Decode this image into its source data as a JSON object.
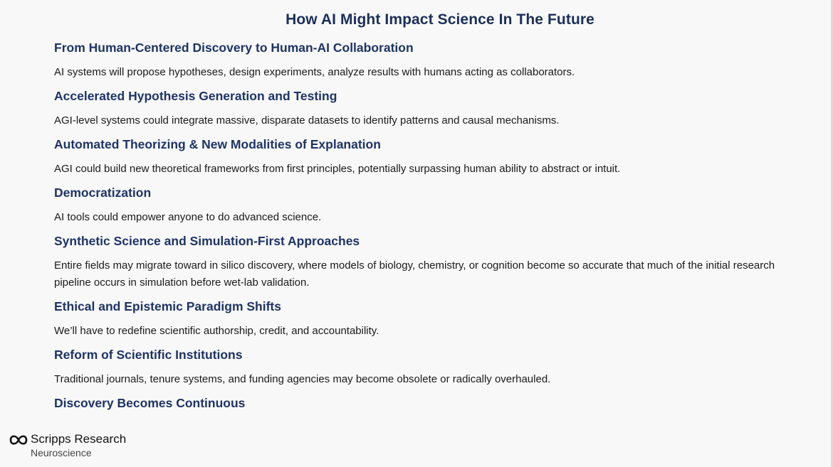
{
  "slide": {
    "title": "How AI Might Impact Science In The Future",
    "sections": [
      {
        "heading": "From Human-Centered Discovery to Human-AI Collaboration",
        "body": "AI systems will propose hypotheses, design experiments, analyze results with humans acting as collaborators."
      },
      {
        "heading": "Accelerated Hypothesis Generation and Testing",
        "body": "AGI-level systems could integrate massive, disparate datasets to identify patterns and causal mechanisms."
      },
      {
        "heading": "Automated Theorizing & New Modalities of Explanation",
        "body": "AGI could build new theoretical frameworks from first principles, potentially surpassing human ability to abstract or intuit."
      },
      {
        "heading": "Democratization",
        "body": "AI tools could empower anyone to do advanced science."
      },
      {
        "heading": "Synthetic Science and Simulation-First Approaches",
        "body": "Entire fields may migrate toward in silico discovery, where models of biology, chemistry, or cognition become so accurate that much of the initial research pipeline occurs in simulation before wet-lab validation."
      },
      {
        "heading": "Ethical and Epistemic Paradigm Shifts",
        "body": "We’ll have to redefine scientific authorship, credit, and accountability."
      },
      {
        "heading": "Reform of Scientific Institutions",
        "body": "Traditional journals, tenure systems, and funding agencies may become obsolete or radically overhauled."
      },
      {
        "heading": "Discovery Becomes Continuous",
        "body": ""
      }
    ]
  },
  "logo": {
    "name": "Scripps Research",
    "subtitle": "Neuroscience",
    "icon": "scripps-infinity-icon"
  },
  "colors": {
    "heading": "#1d3466",
    "title": "#1b2f5b",
    "body": "#1a1a1a",
    "background": "#f8f8f8"
  }
}
